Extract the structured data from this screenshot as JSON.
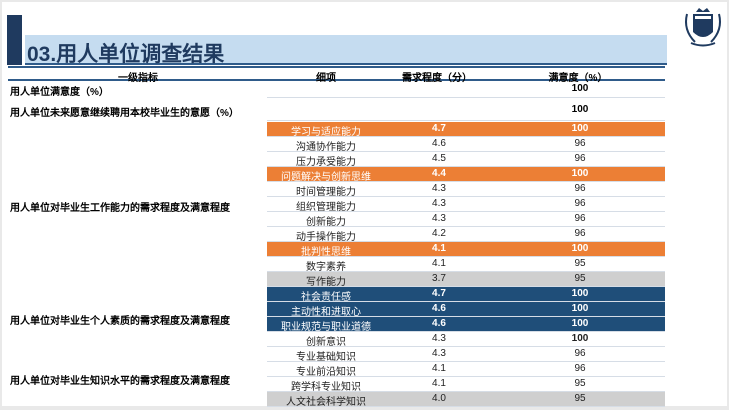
{
  "title": "03.用人单位调查结果",
  "colors": {
    "highlight_orange": "#ec7f35",
    "highlight_navy": "#1f4e79",
    "highlight_gray": "#cfcfcf",
    "title_bar": "#c5dcf0"
  },
  "logo": {
    "icon": "university-crest-icon"
  },
  "headers": [
    "一级指标",
    "细项",
    "需求程度（分）",
    "满意度（%）"
  ],
  "summary": [
    {
      "label": "用人单位满意度（%）",
      "satisfaction": "100"
    },
    {
      "label": "用人单位未来愿意继续聘用本校毕业生的意愿（%）",
      "satisfaction": "100"
    }
  ],
  "groups": [
    {
      "label": "用人单位对毕业生工作能力的需求程度及满意程度"
    },
    {
      "label": "用人单位对毕业生个人素质的需求程度及满意程度"
    },
    {
      "label": "用人单位对毕业生知识水平的需求程度及满意程度"
    }
  ],
  "rows": [
    {
      "item": "学习与适应能力",
      "demand": "4.7",
      "satisfaction": "100",
      "style": "orange"
    },
    {
      "item": "沟通协作能力",
      "demand": "4.6",
      "satisfaction": "96",
      "style": ""
    },
    {
      "item": "压力承受能力",
      "demand": "4.5",
      "satisfaction": "96",
      "style": ""
    },
    {
      "item": "问题解决与创新思维",
      "demand": "4.4",
      "satisfaction": "100",
      "style": "orange"
    },
    {
      "item": "时间管理能力",
      "demand": "4.3",
      "satisfaction": "96",
      "style": ""
    },
    {
      "item": "组织管理能力",
      "demand": "4.3",
      "satisfaction": "96",
      "style": ""
    },
    {
      "item": "创新能力",
      "demand": "4.3",
      "satisfaction": "96",
      "style": ""
    },
    {
      "item": "动手操作能力",
      "demand": "4.2",
      "satisfaction": "96",
      "style": ""
    },
    {
      "item": "批判性思维",
      "demand": "4.1",
      "satisfaction": "100",
      "style": "orange"
    },
    {
      "item": "数字素养",
      "demand": "4.1",
      "satisfaction": "95",
      "style": ""
    },
    {
      "item": "写作能力",
      "demand": "3.7",
      "satisfaction": "95",
      "style": "gray"
    },
    {
      "item": "社会责任感",
      "demand": "4.7",
      "satisfaction": "100",
      "style": "navy"
    },
    {
      "item": "主动性和进取心",
      "demand": "4.6",
      "satisfaction": "100",
      "style": "navy"
    },
    {
      "item": "职业规范与职业道德",
      "demand": "4.6",
      "satisfaction": "100",
      "style": "navy"
    },
    {
      "item": "创新意识",
      "demand": "4.3",
      "satisfaction": "100",
      "style": "bold"
    },
    {
      "item": "专业基础知识",
      "demand": "4.3",
      "satisfaction": "96",
      "style": ""
    },
    {
      "item": "专业前沿知识",
      "demand": "4.1",
      "satisfaction": "96",
      "style": ""
    },
    {
      "item": "跨学科专业知识",
      "demand": "4.1",
      "satisfaction": "95",
      "style": ""
    },
    {
      "item": "人文社会科学知识",
      "demand": "4.0",
      "satisfaction": "95",
      "style": "gray"
    }
  ]
}
